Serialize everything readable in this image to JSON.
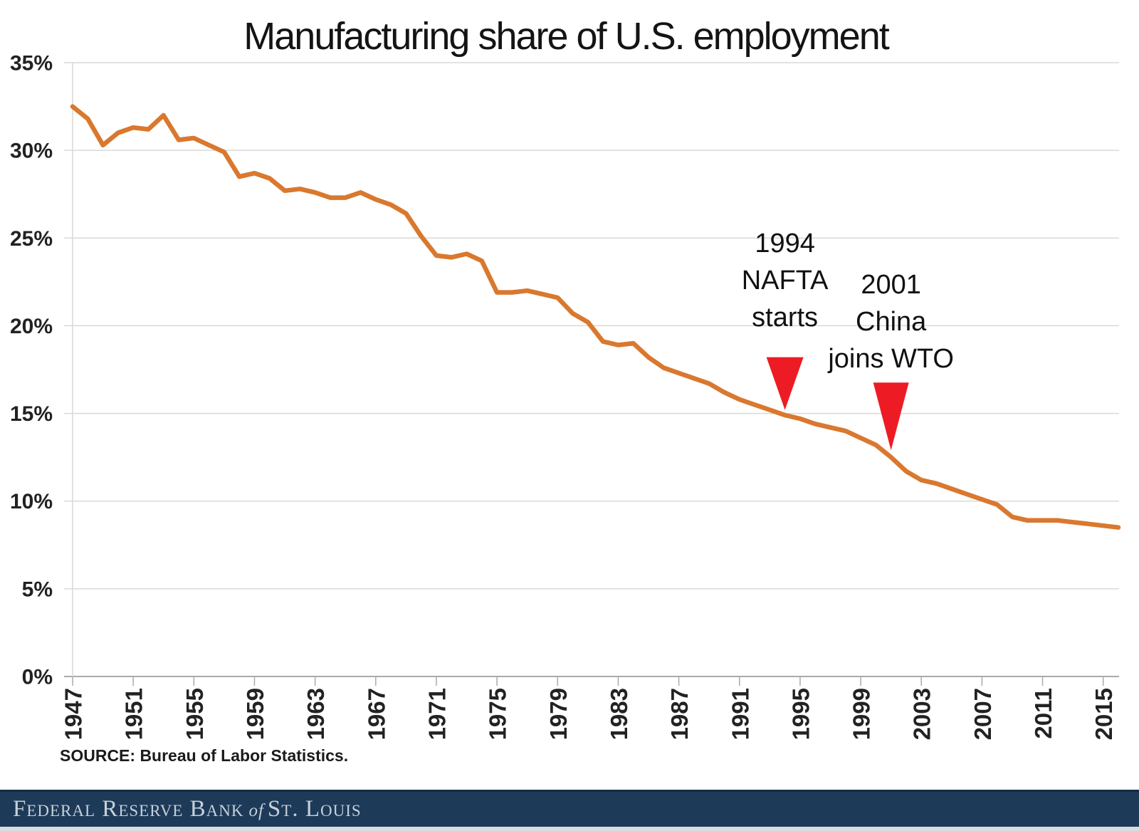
{
  "title": "Manufacturing share of U.S. employment",
  "source_note": "SOURCE: Bureau of Labor Statistics.",
  "footer": {
    "line1": "Federal Reserve Bank",
    "of": "of",
    "line2": "St. Louis",
    "background": "#1d3a58",
    "text_color": "#c6d0da"
  },
  "colors": {
    "line": "#d9782e",
    "arrow": "#ed1c24",
    "grid": "#d9d9d9",
    "axis": "#aaaaaa",
    "label": "#222222",
    "annotation_text": "#111111"
  },
  "annotations": [
    {
      "id": "nafta",
      "lines": [
        "1994",
        "NAFTA",
        "starts"
      ],
      "year": 1994,
      "arrow_tip_value": 15.2
    },
    {
      "id": "china-wto",
      "lines": [
        "2001",
        "China",
        "joins WTO"
      ],
      "year": 2001,
      "arrow_tip_value": 12.9
    }
  ],
  "chart_data": {
    "type": "line",
    "title": "Manufacturing share of U.S. employment",
    "xlabel": "",
    "ylabel": "",
    "xlim": [
      1947,
      2016
    ],
    "ylim": [
      0,
      35
    ],
    "grid": "horizontal",
    "legend": "none",
    "y_ticks": [
      {
        "v": 35,
        "label": "35%"
      },
      {
        "v": 30,
        "label": "30%"
      },
      {
        "v": 25,
        "label": "25%"
      },
      {
        "v": 20,
        "label": "20%"
      },
      {
        "v": 15,
        "label": "15%"
      },
      {
        "v": 10,
        "label": "10%"
      },
      {
        "v": 5,
        "label": "5%"
      },
      {
        "v": 0,
        "label": "0%"
      }
    ],
    "x_tick_labels": [
      "1947",
      "1951",
      "1955",
      "1959",
      "1963",
      "1967",
      "1971",
      "1975",
      "1979",
      "1983",
      "1987",
      "1991",
      "1995",
      "1999",
      "2003",
      "2007",
      "2011",
      "2015"
    ],
    "x": [
      1947,
      1948,
      1949,
      1950,
      1951,
      1952,
      1953,
      1954,
      1955,
      1956,
      1957,
      1958,
      1959,
      1960,
      1961,
      1962,
      1963,
      1964,
      1965,
      1966,
      1967,
      1968,
      1969,
      1970,
      1971,
      1972,
      1973,
      1974,
      1975,
      1976,
      1977,
      1978,
      1979,
      1980,
      1981,
      1982,
      1983,
      1984,
      1985,
      1986,
      1987,
      1988,
      1989,
      1990,
      1991,
      1992,
      1993,
      1994,
      1995,
      1996,
      1997,
      1998,
      1999,
      2000,
      2001,
      2002,
      2003,
      2004,
      2005,
      2006,
      2007,
      2008,
      2009,
      2010,
      2011,
      2012,
      2013,
      2014,
      2015,
      2016
    ],
    "values": [
      32.5,
      31.8,
      30.3,
      31.0,
      31.3,
      31.2,
      32.0,
      30.6,
      30.7,
      30.3,
      29.9,
      28.5,
      28.7,
      28.4,
      27.7,
      27.8,
      27.6,
      27.3,
      27.3,
      27.6,
      27.2,
      26.9,
      26.4,
      25.1,
      24.0,
      23.9,
      24.1,
      23.7,
      21.9,
      21.9,
      22.0,
      21.8,
      21.6,
      20.7,
      20.2,
      19.1,
      18.9,
      19.0,
      18.2,
      17.6,
      17.3,
      17.0,
      16.7,
      16.2,
      15.8,
      15.5,
      15.2,
      14.9,
      14.7,
      14.4,
      14.2,
      14.0,
      13.6,
      13.2,
      12.5,
      11.7,
      11.2,
      11.0,
      10.7,
      10.4,
      10.1,
      9.8,
      9.1,
      8.9,
      8.9,
      8.9,
      8.8,
      8.7,
      8.6,
      8.5
    ]
  }
}
